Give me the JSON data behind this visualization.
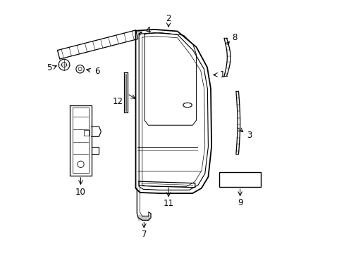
{
  "background_color": "#ffffff",
  "line_color": "#000000",
  "figsize": [
    4.89,
    3.6
  ],
  "dpi": 100,
  "xlim": [
    0,
    10
  ],
  "ylim": [
    0,
    10
  ]
}
